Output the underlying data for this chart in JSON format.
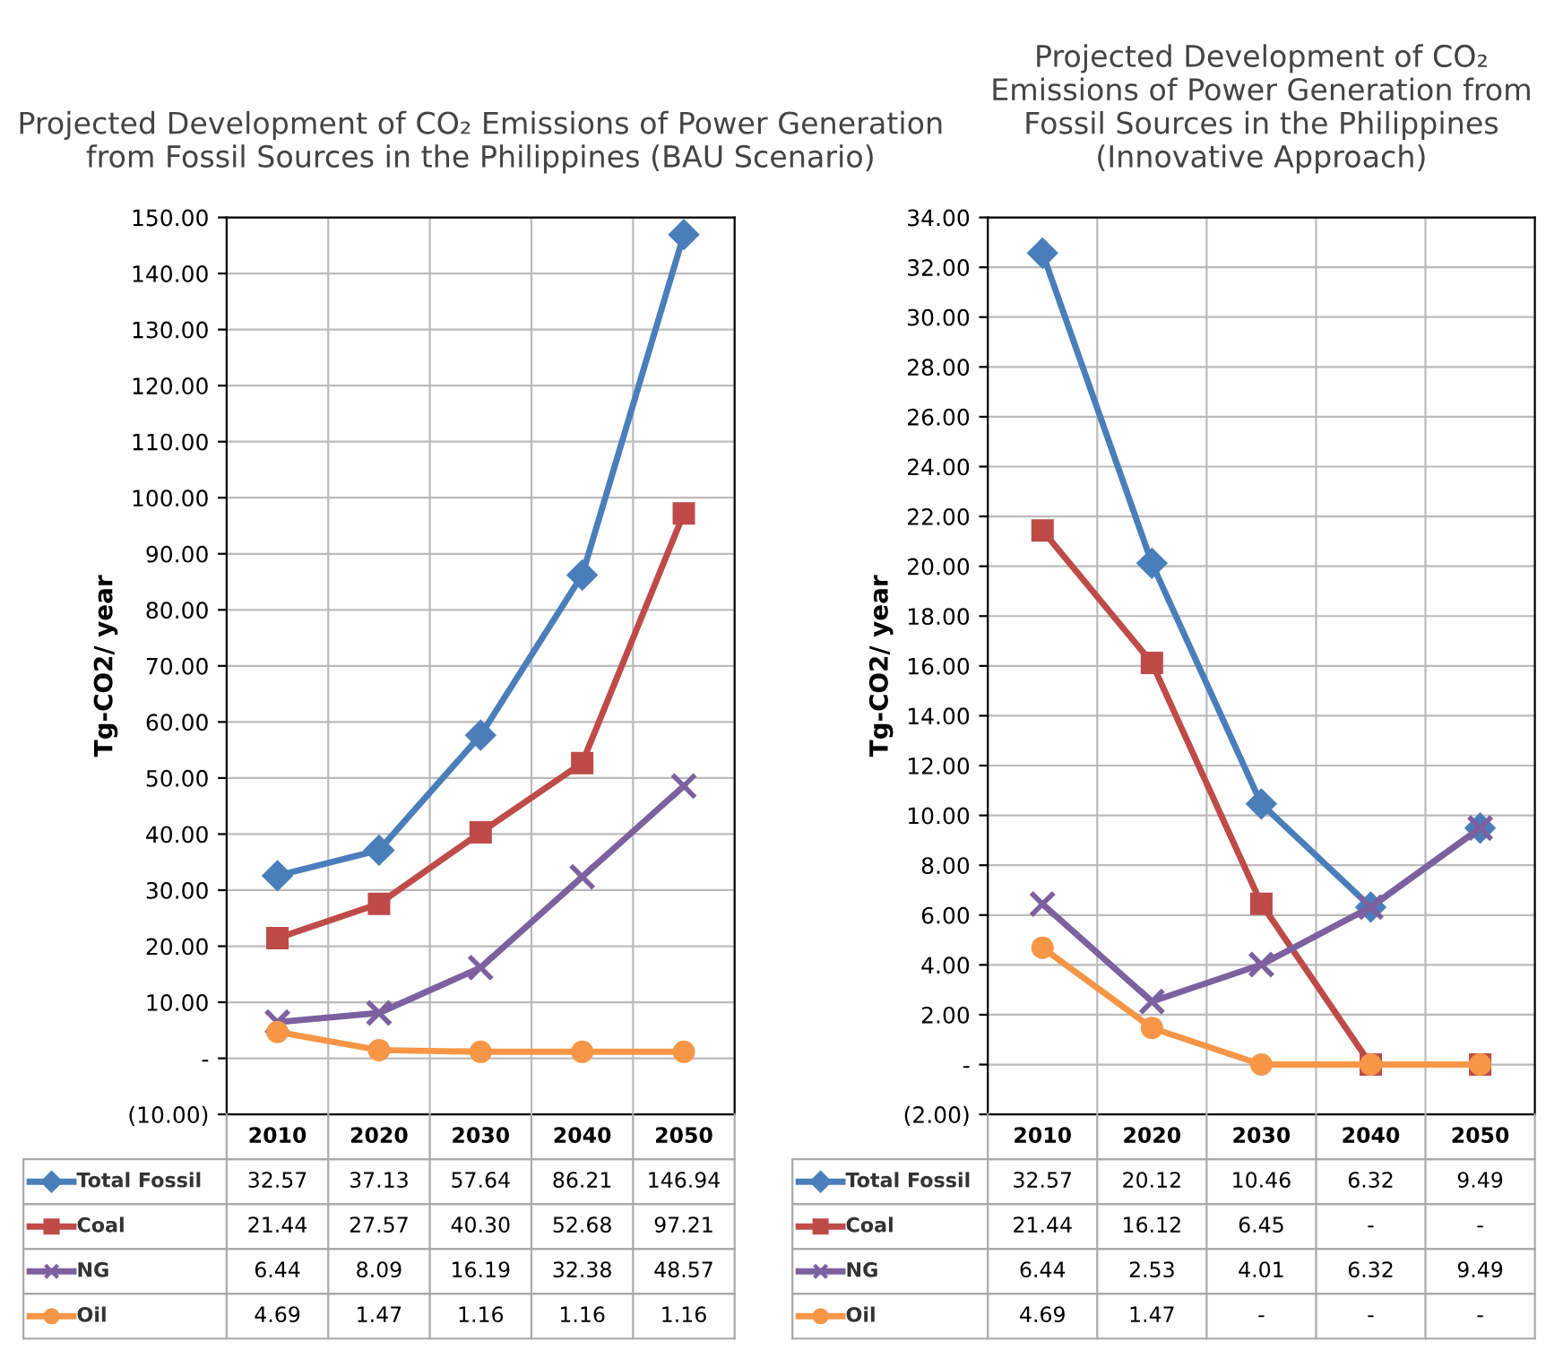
{
  "chart_data": [
    {
      "type": "line",
      "title": "Projected Development of CO₂ Emissions of Power Generation from Fossil Sources in the Philippines (BAU Scenario)",
      "ylabel": "Tg-CO2/ year",
      "categories": [
        "2010",
        "2020",
        "2030",
        "2040",
        "2050"
      ],
      "ylim": [
        -10,
        150
      ],
      "yticks": [
        {
          "value": -10,
          "label": "(10.00)"
        },
        {
          "value": 0,
          "label": "-"
        },
        {
          "value": 10,
          "label": "10.00"
        },
        {
          "value": 20,
          "label": "20.00"
        },
        {
          "value": 30,
          "label": "30.00"
        },
        {
          "value": 40,
          "label": "40.00"
        },
        {
          "value": 50,
          "label": "50.00"
        },
        {
          "value": 60,
          "label": "60.00"
        },
        {
          "value": 70,
          "label": "70.00"
        },
        {
          "value": 80,
          "label": "80.00"
        },
        {
          "value": 90,
          "label": "90.00"
        },
        {
          "value": 100,
          "label": "100.00"
        },
        {
          "value": 110,
          "label": "110.00"
        },
        {
          "value": 120,
          "label": "120.00"
        },
        {
          "value": 130,
          "label": "130.00"
        },
        {
          "value": 140,
          "label": "140.00"
        },
        {
          "value": 150,
          "label": "150.00"
        }
      ],
      "grid": true,
      "legend": "bottom",
      "series": [
        {
          "name": "Total Fossil",
          "color": "#4a7ebb",
          "marker": "diamond",
          "values": [
            32.57,
            37.13,
            57.64,
            86.21,
            146.94
          ],
          "value_labels": [
            "32.57",
            "37.13",
            "57.64",
            "86.21",
            "146.94"
          ]
        },
        {
          "name": "Coal",
          "color": "#be4b48",
          "marker": "square",
          "values": [
            21.44,
            27.57,
            40.3,
            52.68,
            97.21
          ],
          "value_labels": [
            "21.44",
            "27.57",
            "40.30",
            "52.68",
            "97.21"
          ]
        },
        {
          "name": "NG",
          "color": "#7d60a0",
          "marker": "cross",
          "values": [
            6.44,
            8.09,
            16.19,
            32.38,
            48.57
          ],
          "value_labels": [
            "6.44",
            "8.09",
            "16.19",
            "32.38",
            "48.57"
          ]
        },
        {
          "name": "Oil",
          "color": "#f79646",
          "marker": "circle",
          "values": [
            4.69,
            1.47,
            1.16,
            1.16,
            1.16
          ],
          "value_labels": [
            "4.69",
            "1.47",
            "1.16",
            "1.16",
            "1.16"
          ]
        }
      ]
    },
    {
      "type": "line",
      "title": "Projected Development of CO₂ Emissions of Power Generation from Fossil Sources in the Philippines (Innovative Approach)",
      "ylabel": "Tg-CO2/ year",
      "categories": [
        "2010",
        "2020",
        "2030",
        "2040",
        "2050"
      ],
      "ylim": [
        -2,
        34
      ],
      "yticks": [
        {
          "value": -2,
          "label": "(2.00)"
        },
        {
          "value": 0,
          "label": "-"
        },
        {
          "value": 2,
          "label": "2.00"
        },
        {
          "value": 4,
          "label": "4.00"
        },
        {
          "value": 6,
          "label": "6.00"
        },
        {
          "value": 8,
          "label": "8.00"
        },
        {
          "value": 10,
          "label": "10.00"
        },
        {
          "value": 12,
          "label": "12.00"
        },
        {
          "value": 14,
          "label": "14.00"
        },
        {
          "value": 16,
          "label": "16.00"
        },
        {
          "value": 18,
          "label": "18.00"
        },
        {
          "value": 20,
          "label": "20.00"
        },
        {
          "value": 22,
          "label": "22.00"
        },
        {
          "value": 24,
          "label": "24.00"
        },
        {
          "value": 26,
          "label": "26.00"
        },
        {
          "value": 28,
          "label": "28.00"
        },
        {
          "value": 30,
          "label": "30.00"
        },
        {
          "value": 32,
          "label": "32.00"
        },
        {
          "value": 34,
          "label": "34.00"
        }
      ],
      "grid": true,
      "legend": "bottom",
      "series": [
        {
          "name": "Total Fossil",
          "color": "#4a7ebb",
          "marker": "diamond",
          "values": [
            32.57,
            20.12,
            10.46,
            6.32,
            9.49
          ],
          "value_labels": [
            "32.57",
            "20.12",
            "10.46",
            "6.32",
            "9.49"
          ]
        },
        {
          "name": "Coal",
          "color": "#be4b48",
          "marker": "square",
          "values": [
            21.44,
            16.12,
            6.45,
            0,
            0
          ],
          "value_labels": [
            "21.44",
            "16.12",
            "6.45",
            "-",
            "-"
          ]
        },
        {
          "name": "NG",
          "color": "#7d60a0",
          "marker": "cross",
          "values": [
            6.44,
            2.53,
            4.01,
            6.32,
            9.49
          ],
          "value_labels": [
            "6.44",
            "2.53",
            "4.01",
            "6.32",
            "9.49"
          ]
        },
        {
          "name": "Oil",
          "color": "#f79646",
          "marker": "circle",
          "values": [
            4.69,
            1.47,
            0,
            0,
            0
          ],
          "value_labels": [
            "4.69",
            "1.47",
            "-",
            "-",
            "-"
          ]
        }
      ]
    }
  ]
}
